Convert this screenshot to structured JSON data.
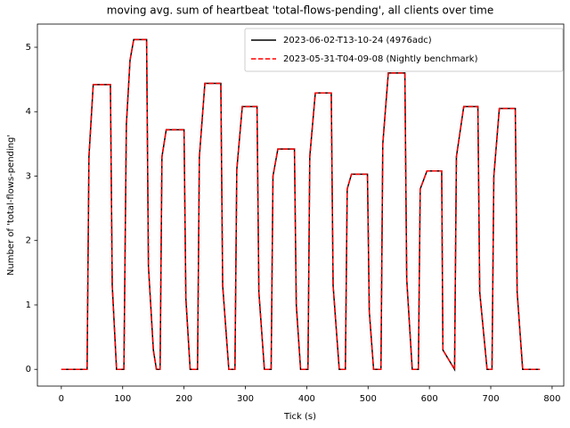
{
  "chart_data": {
    "type": "line",
    "title": "moving avg. sum of heartbeat 'total-flows-pending', all clients over time",
    "x_label": "Tick (s)",
    "y_label": "Number of 'total-flows-pending'",
    "x": [
      0,
      42,
      45,
      52,
      80,
      83,
      90,
      102,
      106,
      112,
      118,
      139,
      142,
      150,
      155,
      161,
      164,
      171,
      200,
      203,
      210,
      222,
      225,
      234,
      260,
      263,
      273,
      283,
      286,
      295,
      319,
      322,
      331,
      342,
      345,
      353,
      380,
      383,
      390,
      402,
      405,
      414,
      440,
      443,
      453,
      463,
      466,
      473,
      499,
      502,
      509,
      521,
      524,
      533,
      560,
      563,
      572,
      582,
      585,
      596,
      620,
      622,
      641,
      644,
      656,
      679,
      682,
      694,
      702,
      705,
      714,
      740,
      743,
      752,
      780
    ],
    "series": [
      {
        "name": "2023-06-02-T13-10-24 (4976adc)",
        "color": "#000000",
        "dash": "solid",
        "values": [
          0,
          0,
          3.3,
          4.42,
          4.42,
          1.3,
          0,
          0,
          3.8,
          4.8,
          5.12,
          5.12,
          1.6,
          0.3,
          0,
          0,
          3.3,
          3.72,
          3.72,
          1.1,
          0,
          0,
          3.3,
          4.44,
          4.44,
          1.3,
          0,
          0,
          3.1,
          4.08,
          4.08,
          1.2,
          0,
          0,
          3.0,
          3.42,
          3.42,
          1.0,
          0,
          0,
          3.3,
          4.29,
          4.29,
          1.3,
          0,
          0,
          2.8,
          3.03,
          3.03,
          0.9,
          0,
          0,
          3.5,
          4.6,
          4.6,
          1.4,
          0,
          0,
          2.8,
          3.08,
          3.08,
          0.3,
          0,
          3.3,
          4.08,
          4.08,
          1.2,
          0,
          0,
          3.0,
          4.05,
          4.05,
          1.2,
          0,
          0
        ]
      },
      {
        "name": "2023-05-31-T04-09-08 (Nightly benchmark)",
        "color": "#ff0000",
        "dash": "dashed",
        "values": [
          0,
          0,
          3.3,
          4.42,
          4.42,
          1.3,
          0,
          0,
          3.8,
          4.8,
          5.12,
          5.12,
          1.6,
          0.3,
          0,
          0,
          3.3,
          3.72,
          3.72,
          1.1,
          0,
          0,
          3.3,
          4.44,
          4.44,
          1.3,
          0,
          0,
          3.1,
          4.08,
          4.08,
          1.2,
          0,
          0,
          3.0,
          3.42,
          3.42,
          1.0,
          0,
          0,
          3.3,
          4.29,
          4.29,
          1.3,
          0,
          0,
          2.8,
          3.03,
          3.03,
          0.9,
          0,
          0,
          3.5,
          4.6,
          4.6,
          1.4,
          0,
          0,
          2.8,
          3.08,
          3.08,
          0.3,
          0,
          3.3,
          4.08,
          4.08,
          1.2,
          0,
          0,
          3.0,
          4.05,
          4.05,
          1.2,
          0,
          0
        ]
      }
    ],
    "xlim": [
      -39,
      819
    ],
    "ylim": [
      -0.26,
      5.36
    ],
    "xticks": [
      0,
      100,
      200,
      300,
      400,
      500,
      600,
      700,
      800
    ],
    "yticks": [
      0,
      1,
      2,
      3,
      4,
      5
    ],
    "legend": "upper right"
  }
}
